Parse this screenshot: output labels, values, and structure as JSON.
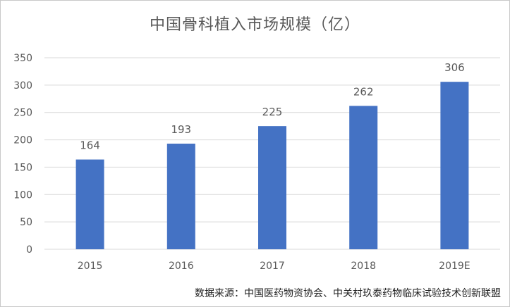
{
  "chart_data": {
    "type": "bar",
    "title": "中国骨科植入市场规模（亿）",
    "categories": [
      "2015",
      "2016",
      "2017",
      "2018",
      "2019E"
    ],
    "values": [
      164,
      193,
      225,
      262,
      306
    ],
    "data_labels": [
      "164",
      "193",
      "225",
      "262",
      "306"
    ],
    "ylim": [
      0,
      350
    ],
    "yticks": [
      0,
      50,
      100,
      150,
      200,
      250,
      300,
      350
    ],
    "xlabel": "",
    "ylabel": "",
    "grid": true,
    "legend": "none",
    "colors": {
      "bar": "#4472C4",
      "grid": "#D9D9D9",
      "text": "#595959"
    }
  },
  "source": "数据来源：中国医药物资协会、中关村玖泰药物临床试验技术创新联盟"
}
